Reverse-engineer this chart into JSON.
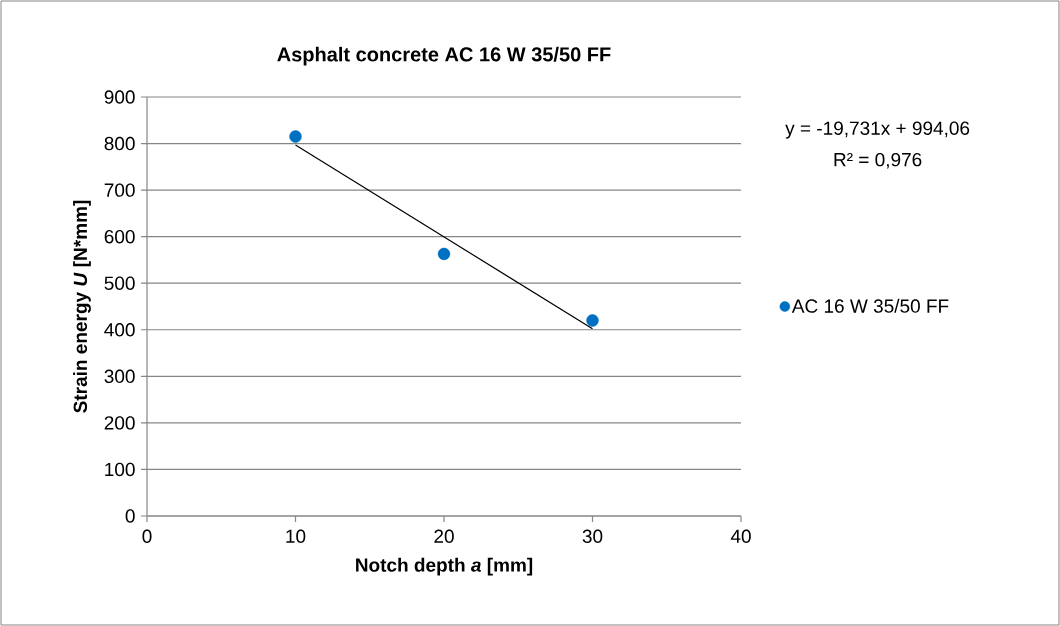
{
  "chart_data": {
    "type": "scatter",
    "title": "Asphalt concrete AC 16 W 35/50 FF",
    "xlabel": "Notch depth *a* [mm]",
    "ylabel": "Strain energy *U* [N*mm]",
    "annotations": [
      "y = -19,731x + 994,06",
      "R² = 0,976"
    ],
    "x": [
      10,
      20,
      30
    ],
    "series": [
      {
        "name": "AC 16 W 35/50 FF",
        "color": "#0070c0",
        "values": [
          815,
          563,
          420
        ]
      },
      {
        "type": "line",
        "marker": "none",
        "color": "#000000",
        "x": [
          10,
          30
        ],
        "values": [
          797,
          402
        ]
      }
    ],
    "xlim": [
      0,
      40
    ],
    "ylim": [
      0,
      900
    ],
    "xticks": [
      0,
      10,
      20,
      30,
      40
    ],
    "yticks": [
      0,
      100,
      200,
      300,
      400,
      500,
      600,
      700,
      800,
      900
    ],
    "grid": "y",
    "legend": "right",
    "marker": "circle"
  }
}
